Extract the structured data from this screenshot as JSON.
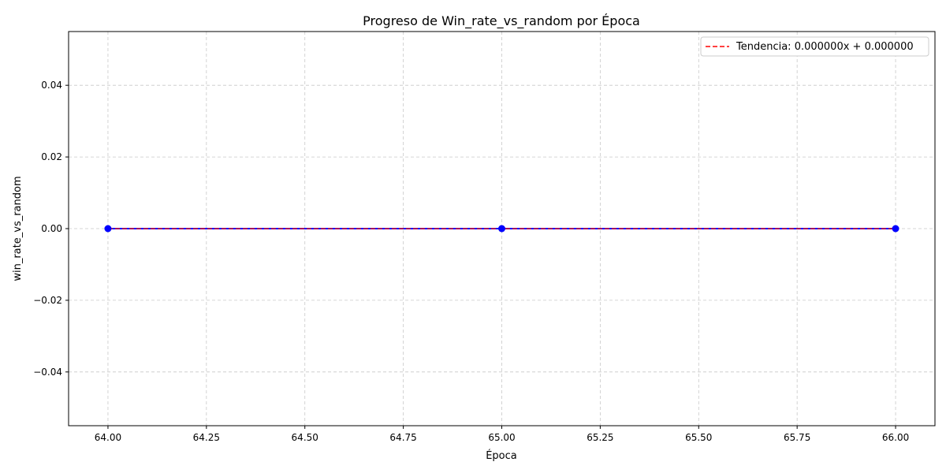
{
  "chart_data": {
    "type": "line",
    "title": "Progreso de Win_rate_vs_random por Época",
    "xlabel": "Época",
    "ylabel": "win_rate_vs_random",
    "xlim": [
      63.9,
      66.1
    ],
    "ylim": [
      -0.055,
      0.055
    ],
    "x_ticks": [
      64.0,
      64.25,
      64.5,
      64.75,
      65.0,
      65.25,
      65.5,
      65.75,
      66.0
    ],
    "x_tick_labels": [
      "64.00",
      "64.25",
      "64.50",
      "64.75",
      "65.00",
      "65.25",
      "65.50",
      "65.75",
      "66.00"
    ],
    "y_ticks": [
      0.04,
      0.02,
      0.0,
      -0.02,
      -0.04
    ],
    "y_tick_labels": [
      "0.04",
      "0.02",
      "0.00",
      "−0.02",
      "−0.04"
    ],
    "grid": true,
    "legend_position": "top-right",
    "series": [
      {
        "style": "solid-line-with-markers",
        "color": "#0000ff",
        "x": [
          64,
          65,
          66
        ],
        "y": [
          0,
          0,
          0
        ]
      },
      {
        "name": "Tendencia: 0.000000x + 0.000000",
        "style": "dashed",
        "color": "#ff0000",
        "x": [
          64,
          66
        ],
        "y": [
          0,
          0
        ]
      }
    ]
  }
}
